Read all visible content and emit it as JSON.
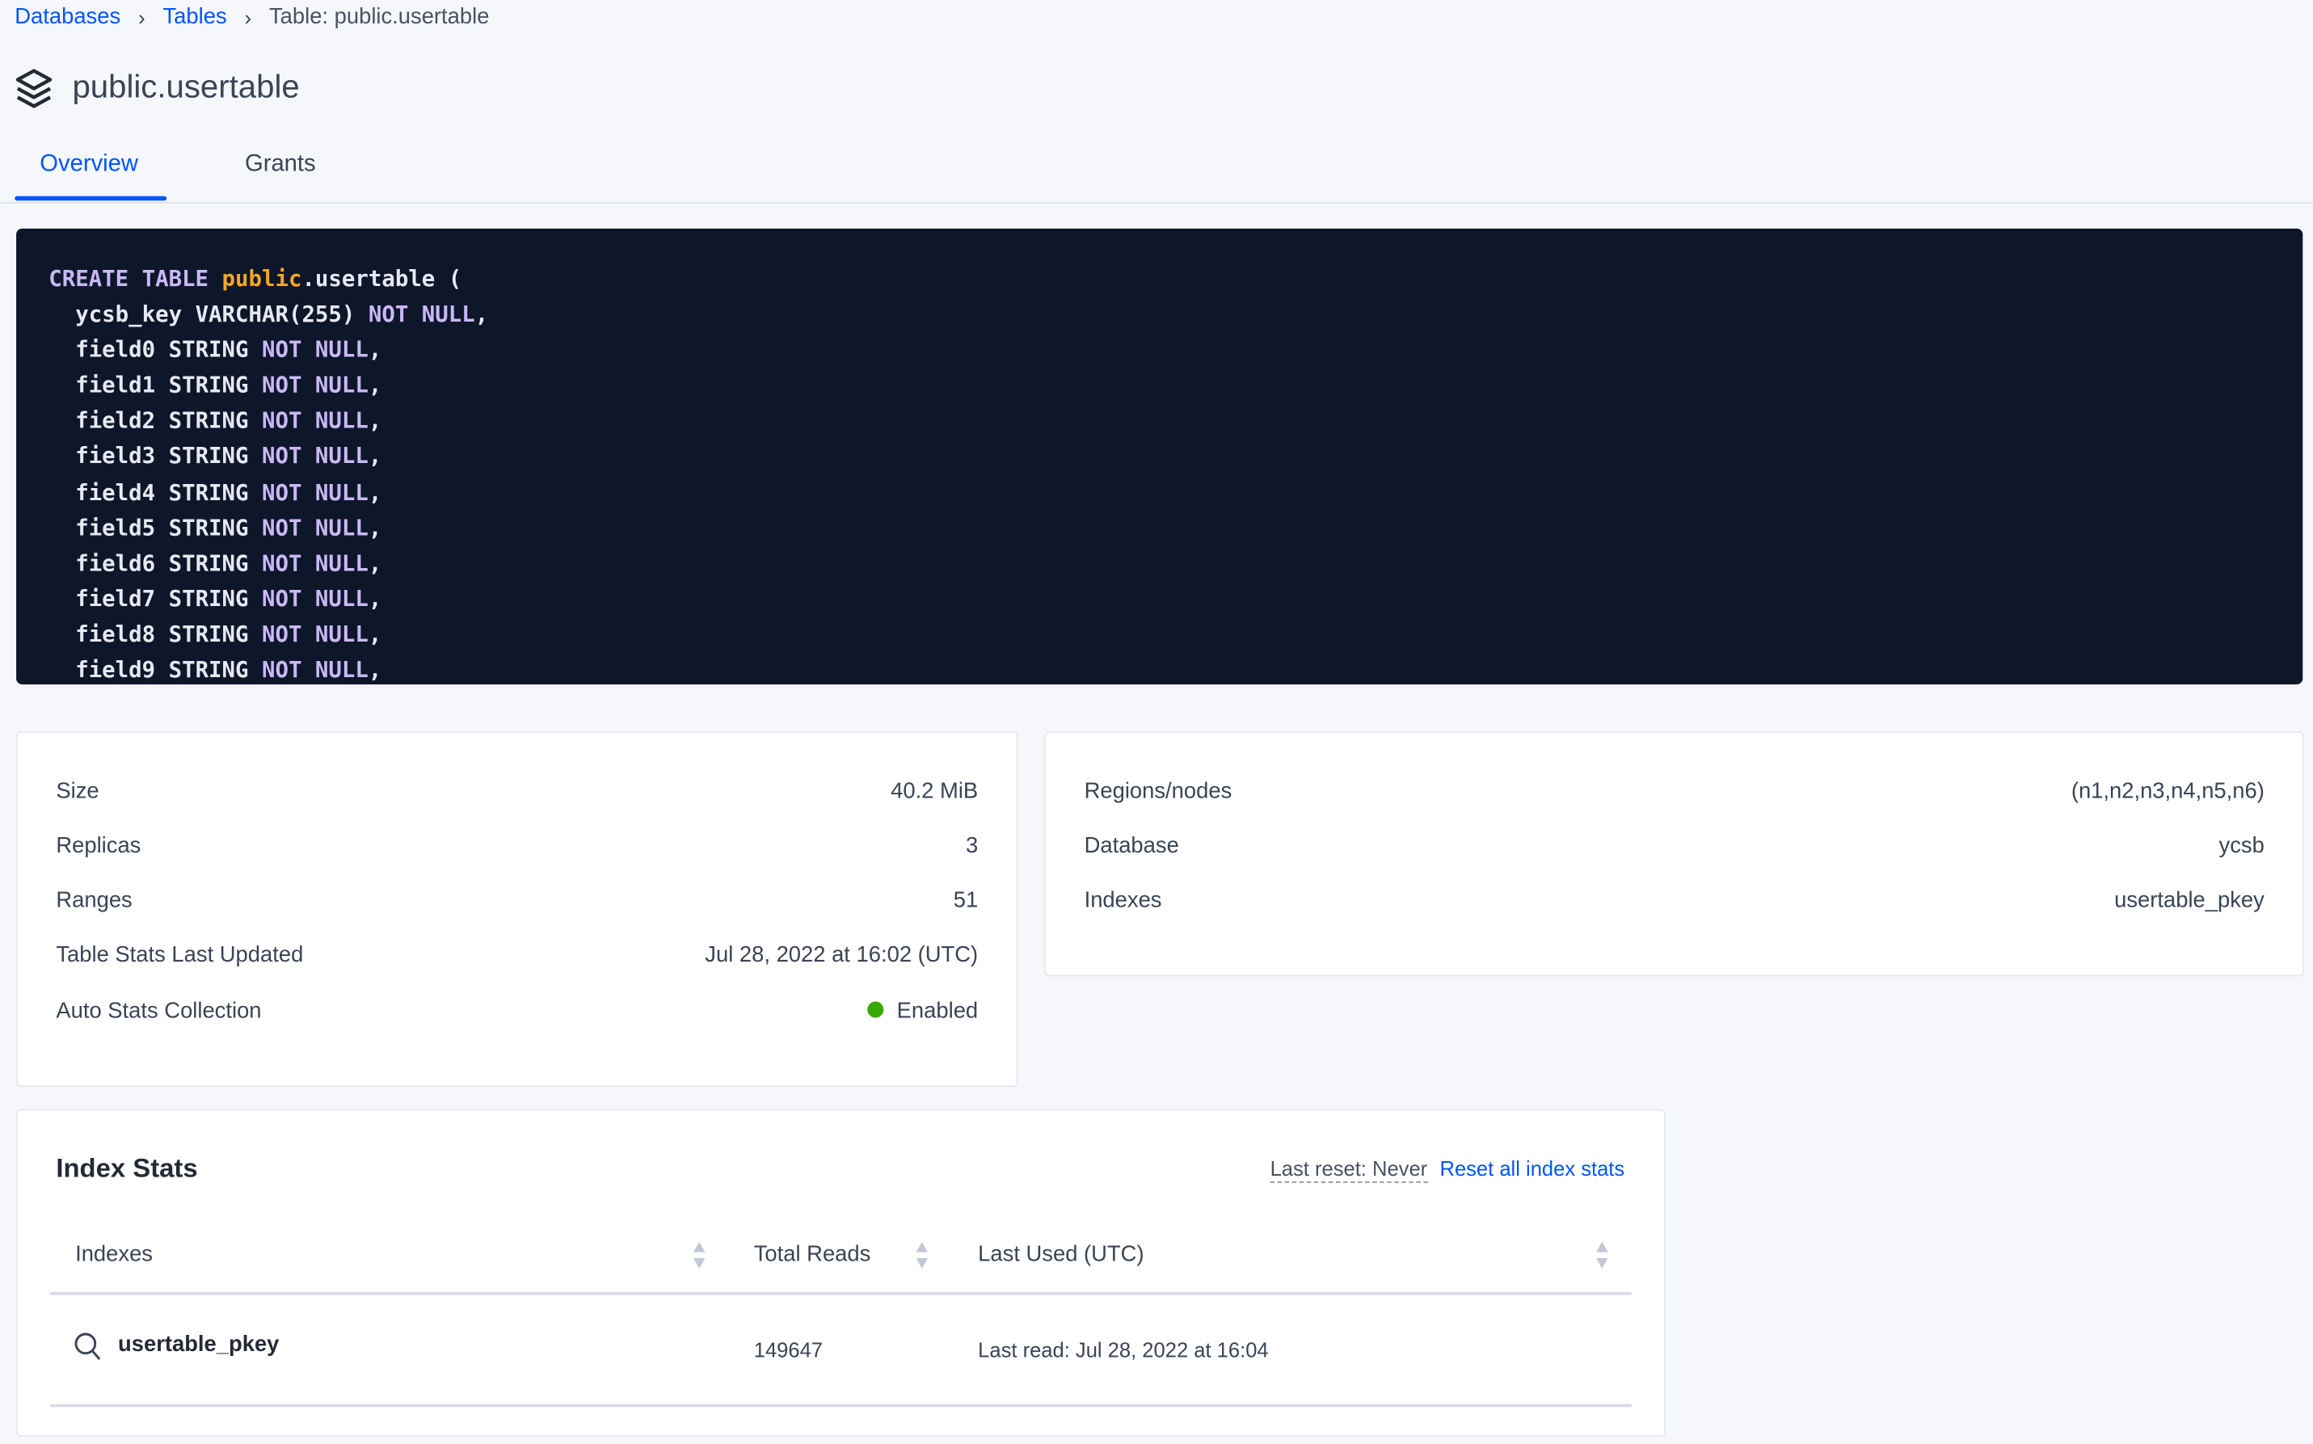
{
  "breadcrumb": [
    {
      "label": "Databases"
    },
    {
      "label": "Tables"
    },
    {
      "label": "Table: public.usertable"
    }
  ],
  "page": {
    "title": "public.usertable",
    "icon": "stack-icon"
  },
  "tabs": [
    {
      "label": "Overview",
      "active": true
    },
    {
      "label": "Grants",
      "active": false
    }
  ],
  "code": {
    "keyword_color": "#c9b8f5",
    "schema_color": "#f5a623",
    "background": "#0e162a",
    "create": "CREATE TABLE",
    "schema": "public",
    "table": ".usertable (",
    "lines": [
      {
        "name": "ycsb_key",
        "type": "VARCHAR(255)",
        "constraint": "NOT NULL"
      },
      {
        "name": "field0",
        "type": "STRING",
        "constraint": "NOT NULL"
      },
      {
        "name": "field1",
        "type": "STRING",
        "constraint": "NOT NULL"
      },
      {
        "name": "field2",
        "type": "STRING",
        "constraint": "NOT NULL"
      },
      {
        "name": "field3",
        "type": "STRING",
        "constraint": "NOT NULL"
      },
      {
        "name": "field4",
        "type": "STRING",
        "constraint": "NOT NULL"
      },
      {
        "name": "field5",
        "type": "STRING",
        "constraint": "NOT NULL"
      },
      {
        "name": "field6",
        "type": "STRING",
        "constraint": "NOT NULL"
      },
      {
        "name": "field7",
        "type": "STRING",
        "constraint": "NOT NULL"
      },
      {
        "name": "field8",
        "type": "STRING",
        "constraint": "NOT NULL"
      },
      {
        "name": "field9",
        "type": "STRING",
        "constraint": "NOT NULL"
      }
    ]
  },
  "stats_left": [
    {
      "label": "Size",
      "value": "40.2 MiB"
    },
    {
      "label": "Replicas",
      "value": "3"
    },
    {
      "label": "Ranges",
      "value": "51"
    },
    {
      "label": "Table Stats Last Updated",
      "value": "Jul 28, 2022 at 16:02 (UTC)"
    },
    {
      "label": "Auto Stats Collection",
      "value": "Enabled",
      "status_color": "#37a806"
    }
  ],
  "stats_right": [
    {
      "label": "Regions/nodes",
      "value": "(n1,n2,n3,n4,n5,n6)"
    },
    {
      "label": "Database",
      "value": "ycsb"
    },
    {
      "label": "Indexes",
      "value": "usertable_pkey"
    }
  ],
  "index_stats": {
    "title": "Index Stats",
    "last_reset": "Last reset: Never",
    "reset_link": "Reset all index stats",
    "columns": [
      "Indexes",
      "Total Reads",
      "Last Used (UTC)"
    ],
    "rows": [
      {
        "index": "usertable_pkey",
        "total_reads": "149647",
        "last_used": "Last read: Jul 28, 2022 at 16:04"
      }
    ]
  }
}
